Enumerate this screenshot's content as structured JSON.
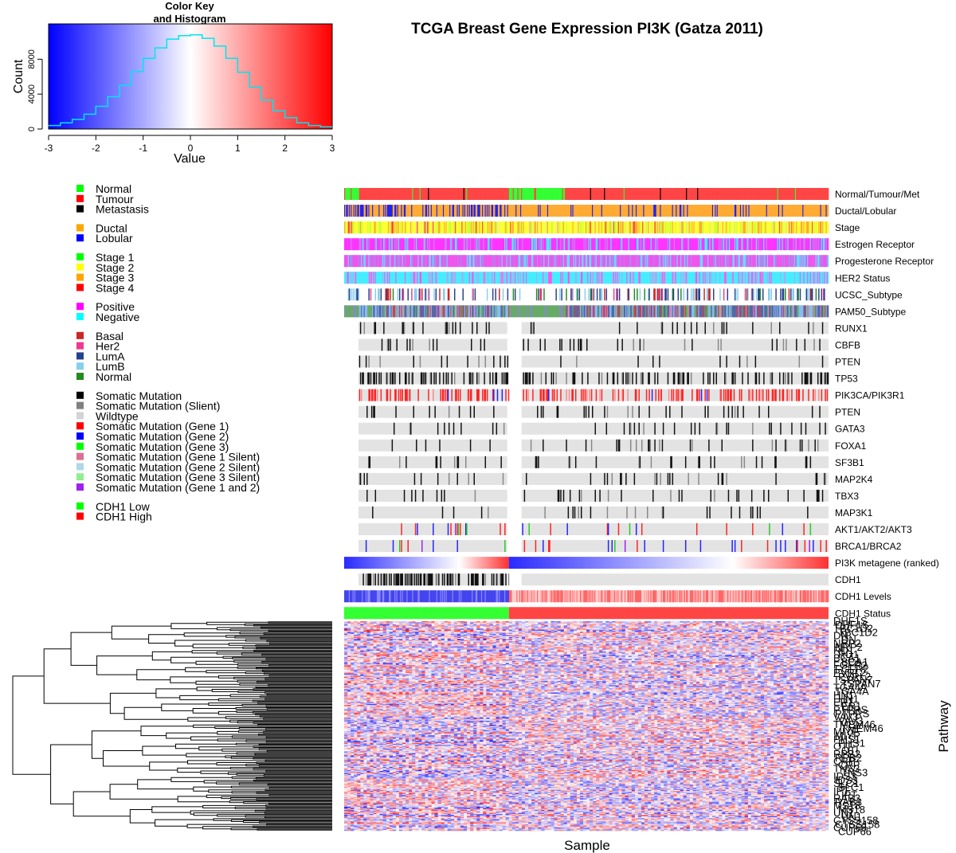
{
  "chart_data": {
    "type": "heatmap",
    "title": "TCGA Breast Gene Expression PI3K (Gatza 2011)",
    "xlabel": "Sample",
    "ylabel": "Pathway",
    "color_scale": {
      "low": "#0000ff",
      "mid": "#ffffff",
      "high": "#ff0000",
      "range": [
        -3,
        3
      ]
    },
    "color_key": {
      "title_line1": "Color Key",
      "title_line2": "and Histogram",
      "xlabel": "Value",
      "ylabel": "Count",
      "x_ticks": [
        -3,
        -2,
        -1,
        0,
        1,
        2,
        3
      ],
      "y_ticks": [
        0,
        4000,
        8000
      ],
      "histogram_color": "#00e5ee",
      "histogram": {
        "x": [
          -2.875,
          -2.625,
          -2.375,
          -2.125,
          -1.875,
          -1.625,
          -1.375,
          -1.125,
          -0.875,
          -0.625,
          -0.375,
          -0.125,
          0.125,
          0.375,
          0.625,
          0.875,
          1.125,
          1.375,
          1.625,
          1.875,
          2.125,
          2.375,
          2.625,
          2.875
        ],
        "counts": [
          400,
          700,
          1100,
          1700,
          2600,
          3700,
          5000,
          6600,
          8100,
          9300,
          10300,
          10700,
          10800,
          10400,
          9500,
          8100,
          6500,
          4800,
          3300,
          2100,
          1300,
          700,
          400,
          250
        ]
      }
    },
    "sample_groups": [
      {
        "label": "CDH1 Low",
        "fraction": 0.34
      },
      {
        "label": "CDH1 High",
        "fraction": 0.66
      }
    ],
    "annotation_tracks": [
      "Normal/Tumour/Met",
      "Ductal/Lobular",
      "Stage",
      "Estrogen Receptor",
      "Progesterone Receptor",
      "HER2 Status",
      "UCSC_Subtype",
      "PAM50_Subtype",
      "RUNX1",
      "CBFB",
      "PTEN",
      "TP53",
      "PIK3CA/PIK3R1",
      "PTEN",
      "GATA3",
      "FOXA1",
      "SF3B1",
      "MAP2K4",
      "TBX3",
      "MAP3K1",
      "AKT1/AKT2/AKT3",
      "BRCA1/BRCA2",
      "PI3K metagene (ranked)",
      "CDH1",
      "CDH1 Levels",
      "CDH1 Status"
    ],
    "legend": [
      {
        "items": [
          {
            "label": "Normal",
            "color": "#00ff00"
          },
          {
            "label": "Tumour",
            "color": "#ff0000"
          },
          {
            "label": "Metastasis",
            "color": "#000000"
          }
        ]
      },
      {
        "items": [
          {
            "label": "Ductal",
            "color": "#ffa500"
          },
          {
            "label": "Lobular",
            "color": "#0000ff"
          }
        ]
      },
      {
        "items": [
          {
            "label": "Stage 1",
            "color": "#00ff00"
          },
          {
            "label": "Stage 2",
            "color": "#ffff00"
          },
          {
            "label": "Stage 3",
            "color": "#ffa500"
          },
          {
            "label": "Stage 4",
            "color": "#ff0000"
          }
        ]
      },
      {
        "items": [
          {
            "label": "Positive",
            "color": "#ff00ff"
          },
          {
            "label": "Negative",
            "color": "#00ffff"
          }
        ]
      },
      {
        "items": [
          {
            "label": "Basal",
            "color": "#cd2626"
          },
          {
            "label": "Her2",
            "color": "#ee3a8c"
          },
          {
            "label": "LumA",
            "color": "#27408b"
          },
          {
            "label": "LumB",
            "color": "#87ceeb"
          },
          {
            "label": "Normal",
            "color": "#228b22"
          }
        ]
      },
      {
        "items": [
          {
            "label": "Somatic Mutation",
            "color": "#000000"
          },
          {
            "label": "Somatic Mutation (Slient)",
            "color": "#808080"
          },
          {
            "label": "Wildtype",
            "color": "#d3d3d3"
          },
          {
            "label": "Somatic Mutation (Gene 1)",
            "color": "#ff0000"
          },
          {
            "label": "Somatic Mutation (Gene 2)",
            "color": "#0000ff"
          },
          {
            "label": "Somatic Mutation (Gene 3)",
            "color": "#00ff00"
          },
          {
            "label": "Somatic Mutation (Gene 1 Silent)",
            "color": "#db7093"
          },
          {
            "label": "Somatic Mutation (Gene 2 Silent)",
            "color": "#add8e6"
          },
          {
            "label": "Somatic Mutation (Gene 3 Silent)",
            "color": "#90ee90"
          },
          {
            "label": "Somatic Mutation (Gene 1 and 2)",
            "color": "#a020f0"
          }
        ]
      },
      {
        "items": [
          {
            "label": "CDH1 Low",
            "color": "#00ff00"
          },
          {
            "label": "CDH1 High",
            "color": "#ff0000"
          }
        ]
      }
    ],
    "gene_labels_visible": [
      "DHF1S",
      "TBC1D2",
      "DN",
      "NRP2",
      "RD1",
      "BCA1",
      "FGFR2",
      "PVRL2",
      "TSPAN7",
      "TGA4A",
      "HN1",
      "ER1",
      "PTPRS",
      "VAV3",
      "TMEM46",
      "MIYP",
      "PHS1",
      "OTI",
      "RPB2",
      "CRP",
      "TNS3",
      "IDS3",
      "SLC1",
      "IPT",
      "RAB3",
      "MS18",
      "UN1",
      "CTSS158",
      "CUP66"
    ],
    "heatmap_rows": 200,
    "grid": false
  }
}
